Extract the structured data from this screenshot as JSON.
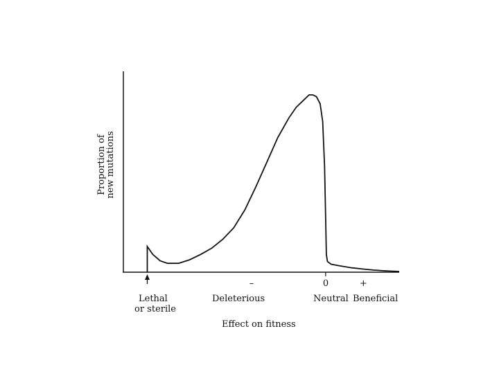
{
  "chart_data": {
    "type": "line",
    "title": "",
    "xlabel": "Effect on fitness",
    "ylabel": [
      "Proportion of",
      "new mutations"
    ],
    "x_ticks": [
      {
        "text": "–",
        "x": -2
      },
      {
        "text": "0",
        "x": 0
      },
      {
        "text": "+",
        "x": 1
      }
    ],
    "category_labels": {
      "lethal": [
        "Lethal",
        "or sterile"
      ],
      "deleterious": "Deleterious",
      "neutral": "Neutral",
      "beneficial": "Beneficial"
    },
    "xlim": [
      -5.5,
      2.0
    ],
    "ylim": [
      0,
      1
    ],
    "series": [
      {
        "x": [
          -4.85,
          -4.85,
          -4.7,
          -4.5,
          -4.3,
          -4.0,
          -3.7,
          -3.4,
          -3.1,
          -2.8,
          -2.5,
          -2.2,
          -1.9,
          -1.6,
          -1.3,
          -1.0,
          -0.8,
          -0.6,
          -0.45,
          -0.35,
          -0.25,
          -0.15,
          -0.08,
          -0.03,
          0.0,
          0.02,
          0.05,
          0.15,
          0.4,
          0.7,
          1.0,
          1.3,
          1.6,
          2.0
        ],
        "y": [
          0.0,
          0.145,
          0.1,
          0.064,
          0.05,
          0.05,
          0.07,
          0.1,
          0.135,
          0.185,
          0.25,
          0.35,
          0.48,
          0.62,
          0.76,
          0.87,
          0.93,
          0.97,
          1.0,
          1.0,
          0.99,
          0.95,
          0.85,
          0.6,
          0.3,
          0.1,
          0.06,
          0.045,
          0.035,
          0.025,
          0.018,
          0.012,
          0.008,
          0.004
        ]
      }
    ],
    "annotations": [
      {
        "type": "arrow",
        "x": -4.85,
        "direction": "up"
      }
    ],
    "grid": false,
    "legend": "none"
  }
}
